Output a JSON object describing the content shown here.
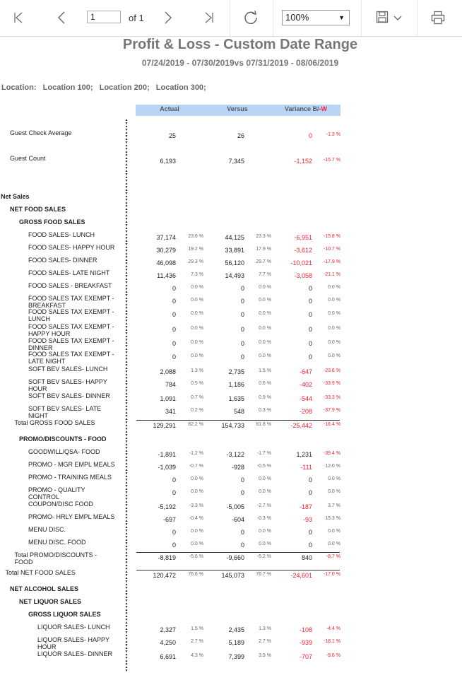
{
  "toolbar": {
    "first_icon": "first-page-icon",
    "prev_icon": "previous-page-icon",
    "page_value": "1",
    "of_text": "of 1",
    "next_icon": "next-page-icon",
    "last_icon": "last-page-icon",
    "refresh_icon": "refresh-icon",
    "zoom_value": "100%",
    "save_icon": "save-icon",
    "print_icon": "print-icon"
  },
  "report": {
    "title": "Profit & Loss - Custom Date Range",
    "subtitle": "07/24/2019 - 07/30/2019vs 07/31/2019 - 08/06/2019",
    "location": "Location:   Location 100;   Location 200;   Location 300;",
    "headers": {
      "actual": "Actual",
      "versus": "Versus",
      "variance": "Variance B/",
      "variance_w": "-W"
    },
    "colors": {
      "header_bg": "#b9d5f5",
      "negative": "#e23333"
    },
    "rows": [
      {
        "label": "Guest Check Average",
        "ind": 0,
        "y": 184,
        "a": "25",
        "v": "26",
        "var": "0",
        "vp": "-1.3 %",
        "neg": true
      },
      {
        "label": "Guest Count",
        "ind": 0,
        "y": 220,
        "a": "6,193",
        "v": "7,345",
        "var": "-1,152",
        "vp": "-15.7 %",
        "neg": true
      },
      {
        "label": "Net Sales",
        "ind": -1,
        "y": 274,
        "bold": true
      },
      {
        "label": "NET FOOD SALES",
        "ind": 0,
        "y": 292,
        "bold": true
      },
      {
        "label": "GROSS FOOD SALES",
        "ind": 1,
        "y": 310,
        "bold": true
      },
      {
        "label": "FOOD SALES- LUNCH",
        "ind": 2,
        "y": 328,
        "a": "37,174",
        "ap": "23.6 %",
        "v": "44,125",
        "vpc": "23.3 %",
        "var": "-6,951",
        "vp": "-15.8 %",
        "neg": true
      },
      {
        "label": "FOOD SALES- HAPPY HOUR",
        "ind": 2,
        "y": 346,
        "a": "30,279",
        "ap": "19.2 %",
        "v": "33,891",
        "vpc": "17.9 %",
        "var": "-3,612",
        "vp": "-10.7 %",
        "neg": true
      },
      {
        "label": "FOOD SALES- DINNER",
        "ind": 2,
        "y": 364,
        "a": "46,098",
        "ap": "29.3 %",
        "v": "56,120",
        "vpc": "29.7 %",
        "var": "-10,021",
        "vp": "-17.9 %",
        "neg": true
      },
      {
        "label": "FOOD SALES- LATE NIGHT",
        "ind": 2,
        "y": 382,
        "a": "11,436",
        "ap": "7.3 %",
        "v": "14,493",
        "vpc": "7.7 %",
        "var": "-3,058",
        "vp": "-21.1 %",
        "neg": true
      },
      {
        "label": "FOOD SALES - BREAKFAST",
        "ind": 2,
        "y": 400,
        "a": "0",
        "ap": "0.0 %",
        "v": "0",
        "vpc": "0.0 %",
        "var": "0",
        "vp": "0.0 %"
      },
      {
        "label": "FOOD SALES TAX EXEMPT -\nBREAKFAST",
        "ind": 2,
        "y": 418,
        "a": "0",
        "ap": "0.0 %",
        "v": "0",
        "vpc": "0.0 %",
        "var": "0",
        "vp": "0.0 %"
      },
      {
        "label": "FOOD SALES TAX EXEMPT -\nLUNCH",
        "ind": 2,
        "y": 437,
        "a": "0",
        "ap": "0.0 %",
        "v": "0",
        "vpc": "0.0 %",
        "var": "0",
        "vp": "0.0 %"
      },
      {
        "label": "FOOD SALES TAX EXEMPT -\nHAPPY HOUR",
        "ind": 2,
        "y": 458,
        "a": "0",
        "ap": "0.0 %",
        "v": "0",
        "vpc": "0.0 %",
        "var": "0",
        "vp": "0.0 %"
      },
      {
        "label": "FOOD SALES TAX EXEMPT -\nDINNER",
        "ind": 2,
        "y": 478,
        "a": "0",
        "ap": "0.0 %",
        "v": "0",
        "vpc": "0.0 %",
        "var": "0",
        "vp": "0.0 %"
      },
      {
        "label": "FOOD SALES TAX EXEMPT -\nLATE NIGHT",
        "ind": 2,
        "y": 497,
        "a": "0",
        "ap": "0.0 %",
        "v": "0",
        "vpc": "0.0 %",
        "var": "0",
        "vp": "0.0 %"
      },
      {
        "label": "SOFT BEV SALES- LUNCH",
        "ind": 2,
        "y": 518,
        "a": "2,088",
        "ap": "1.3 %",
        "v": "2,735",
        "vpc": "1.5 %",
        "var": "-647",
        "vp": "-23.6 %",
        "neg": true
      },
      {
        "label": "SOFT BEV SALES- HAPPY\nHOUR",
        "ind": 2,
        "y": 536,
        "a": "784",
        "ap": "0.5 %",
        "v": "1,186",
        "vpc": "0.6 %",
        "var": "-402",
        "vp": "-33.9 %",
        "neg": true
      },
      {
        "label": "SOFT BEV SALES- DINNER",
        "ind": 2,
        "y": 556,
        "a": "1,091",
        "ap": "0.7 %",
        "v": "1,635",
        "vpc": "0.9 %",
        "var": "-544",
        "vp": "-33.3 %",
        "neg": true
      },
      {
        "label": "SOFT BEV SALES- LATE\nNIGHT",
        "ind": 2,
        "y": 574,
        "a": "341",
        "ap": "0.2 %",
        "v": "548",
        "vpc": "0.3 %",
        "var": "-208",
        "vp": "-37.9 %",
        "neg": true
      },
      {
        "label": "Total GROSS FOOD SALES",
        "ind": 0.5,
        "y": 594,
        "a": "129,291",
        "ap": "82.2 %",
        "v": "154,733",
        "vpc": "81.8 %",
        "var": "-25,442",
        "vp": "-16.4 %",
        "neg": true,
        "total": true
      },
      {
        "label": "PROMO/DISCOUNTS - FOOD",
        "ind": 1,
        "y": 617,
        "bold": true
      },
      {
        "label": "GOODWILL/QSA- FOOD",
        "ind": 2,
        "y": 635,
        "a": "-1,891",
        "ap": "-1.2 %",
        "v": "-3,122",
        "vpc": "-1.7 %",
        "var": "1,231",
        "vp": "-39.4 %",
        "vpneg": true
      },
      {
        "label": "PROMO - MGR EMPL MEALS",
        "ind": 2,
        "y": 653,
        "a": "-1,039",
        "ap": "-0.7 %",
        "v": "-928",
        "vpc": "-0.5 %",
        "var": "-111",
        "vp": "12.0 %",
        "varneg": true
      },
      {
        "label": "PROMO - TRAINING MEALS",
        "ind": 2,
        "y": 671,
        "a": "0",
        "ap": "0.0 %",
        "v": "0",
        "vpc": "0.0 %",
        "var": "0",
        "vp": "0.0 %"
      },
      {
        "label": "PROMO - QUALITY\nCONTROL",
        "ind": 2,
        "y": 689,
        "a": "0",
        "ap": "0.0 %",
        "v": "0",
        "vpc": "0.0 %",
        "var": "0",
        "vp": "0.0 %"
      },
      {
        "label": "COUPON/DISC FOOD",
        "ind": 2,
        "y": 709,
        "a": "-5,192",
        "ap": "-3.3 %",
        "v": "-5,005",
        "vpc": "-2.7 %",
        "var": "-187",
        "vp": "3.7 %",
        "varneg": true
      },
      {
        "label": "PROMO- HRLY EMPL MEALS",
        "ind": 2,
        "y": 727,
        "a": "-697",
        "ap": "-0.4 %",
        "v": "-604",
        "vpc": "-0.3 %",
        "var": "-93",
        "vp": "15.3 %",
        "varneg": true
      },
      {
        "label": "MENU DISC.",
        "ind": 2,
        "y": 745,
        "a": "0",
        "ap": "0.0 %",
        "v": "0",
        "vpc": "0.0 %",
        "var": "0",
        "vp": "0.0 %"
      },
      {
        "label": "MENU DISC. FOOD",
        "ind": 2,
        "y": 763,
        "a": "0",
        "ap": "0.0 %",
        "v": "0",
        "vpc": "0.0 %",
        "var": "0",
        "vp": "0.0 %"
      },
      {
        "label": "Total PROMO/DISCOUNTS -\nFOOD",
        "ind": 0.5,
        "y": 781,
        "a": "-8,819",
        "ap": "-5.6 %",
        "v": "-9,660",
        "vpc": "-5.2 %",
        "var": "840",
        "vp": "-8.7 %",
        "vpneg": true,
        "total": true
      },
      {
        "label": "Total NET FOOD SALES",
        "ind": -0.5,
        "y": 806,
        "a": "120,472",
        "ap": "76.6 %",
        "v": "145,073",
        "vpc": "76.7 %",
        "var": "-24,601",
        "vp": "-17.0 %",
        "neg": true,
        "total": true
      },
      {
        "label": "NET ALCOHOL SALES",
        "ind": 0,
        "y": 829,
        "bold": true
      },
      {
        "label": "NET LIQUOR SALES",
        "ind": 1,
        "y": 847,
        "bold": true
      },
      {
        "label": "GROSS LIQUOR SALES",
        "ind": 2,
        "y": 865,
        "bold": true
      },
      {
        "label": "LIQUOR SALES- LUNCH",
        "ind": 3,
        "y": 883,
        "a": "2,327",
        "ap": "1.5 %",
        "v": "2,435",
        "vpc": "1.3 %",
        "var": "-108",
        "vp": "-4.4 %",
        "neg": true
      },
      {
        "label": "LIQUOR SALES- HAPPY\nHOUR",
        "ind": 3,
        "y": 901,
        "a": "4,250",
        "ap": "2.7 %",
        "v": "5,189",
        "vpc": "2.7 %",
        "var": "-939",
        "vp": "-18.1 %",
        "neg": true
      },
      {
        "label": "LIQUOR SALES- DINNER",
        "ind": 3,
        "y": 921,
        "a": "6,691",
        "ap": "4.3 %",
        "v": "7,399",
        "vpc": "3.9 %",
        "var": "-707",
        "vp": "-9.6 %",
        "neg": true
      }
    ]
  }
}
